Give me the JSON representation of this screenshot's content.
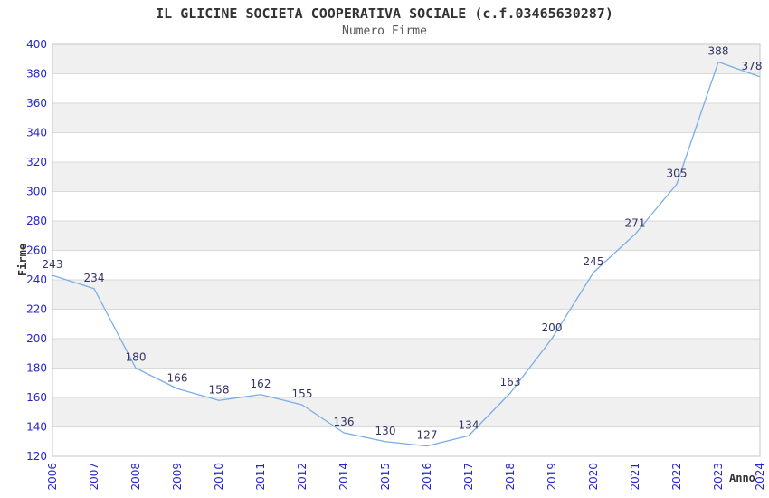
{
  "chart_data": {
    "type": "line",
    "title": "IL GLICINE SOCIETA COOPERATIVA SOCIALE (c.f.03465630287)",
    "subtitle": "Numero Firme",
    "xlabel": "Anno",
    "ylabel": "Firme",
    "categories": [
      "2006",
      "2007",
      "2008",
      "2009",
      "2010",
      "2011",
      "2012",
      "2014",
      "2015",
      "2016",
      "2017",
      "2018",
      "2019",
      "2020",
      "2021",
      "2022",
      "2023",
      "2024"
    ],
    "series": [
      {
        "name": "Numero Firme",
        "values": [
          243,
          234,
          180,
          166,
          158,
          162,
          155,
          136,
          130,
          127,
          134,
          163,
          200,
          245,
          271,
          305,
          388,
          378
        ]
      }
    ],
    "point_labels_shown": true,
    "ylim": [
      120,
      400
    ],
    "ytick_step": 20,
    "grid": true,
    "legend": "none",
    "band_fill": "alternating-horizontal",
    "colors": {
      "line": "#7aade8",
      "band": "#f0f0f0",
      "gridline": "#d9d9d9",
      "frame": "#c6c6c6",
      "tick_label": "#2626cc",
      "point_label": "#333366",
      "title": "#333333",
      "subtitle": "#555555",
      "axis_title": "#333333",
      "background": "#ffffff"
    }
  }
}
